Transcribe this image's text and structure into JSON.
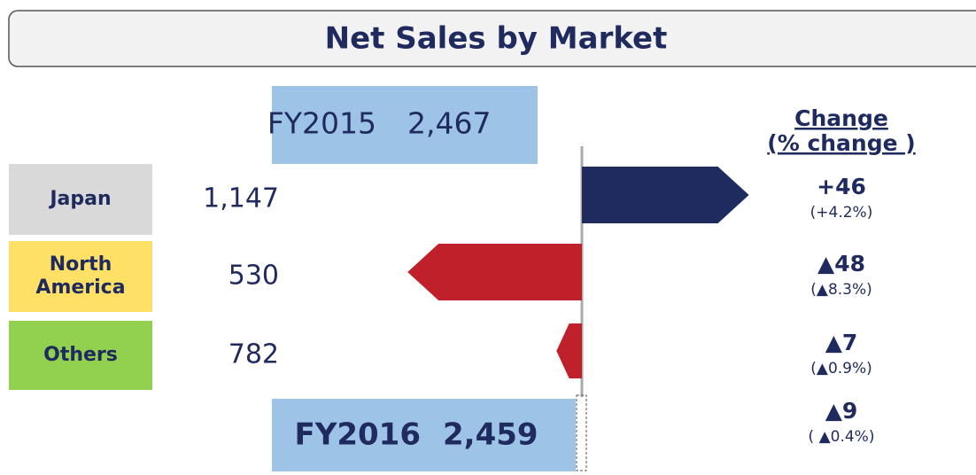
{
  "chart_data": {
    "type": "bridge",
    "title": "Net Sales by Market",
    "change_header": [
      "Change",
      "(% change )"
    ],
    "start": {
      "label": "FY2015",
      "value": 2467,
      "value_label": "2,467"
    },
    "end": {
      "label": "FY2016",
      "value": 2459,
      "value_label": "2,459"
    },
    "categories": [
      "Japan",
      "North America",
      "Others"
    ],
    "category_colors": [
      "#d9d9d9",
      "#ffe066",
      "#92d050"
    ],
    "sales": [
      1147,
      530,
      782
    ],
    "sales_labels": [
      "1,147",
      "530",
      "782"
    ],
    "values": [
      46,
      -48,
      -7
    ],
    "value_labels": [
      "+46",
      "▲48",
      "▲7"
    ],
    "pct_values": [
      4.2,
      -8.3,
      -0.9
    ],
    "pct_labels": [
      "(+4.2%)",
      "(▲8.3%)",
      "(▲0.9%)"
    ],
    "total_change": {
      "value": -9,
      "label": "▲9",
      "pct": -0.4,
      "pct_label": "( ▲0.4%)"
    },
    "colors": {
      "up": "#1f2a5e",
      "down": "#c0202a",
      "total_box": "#9dc3e6"
    }
  }
}
